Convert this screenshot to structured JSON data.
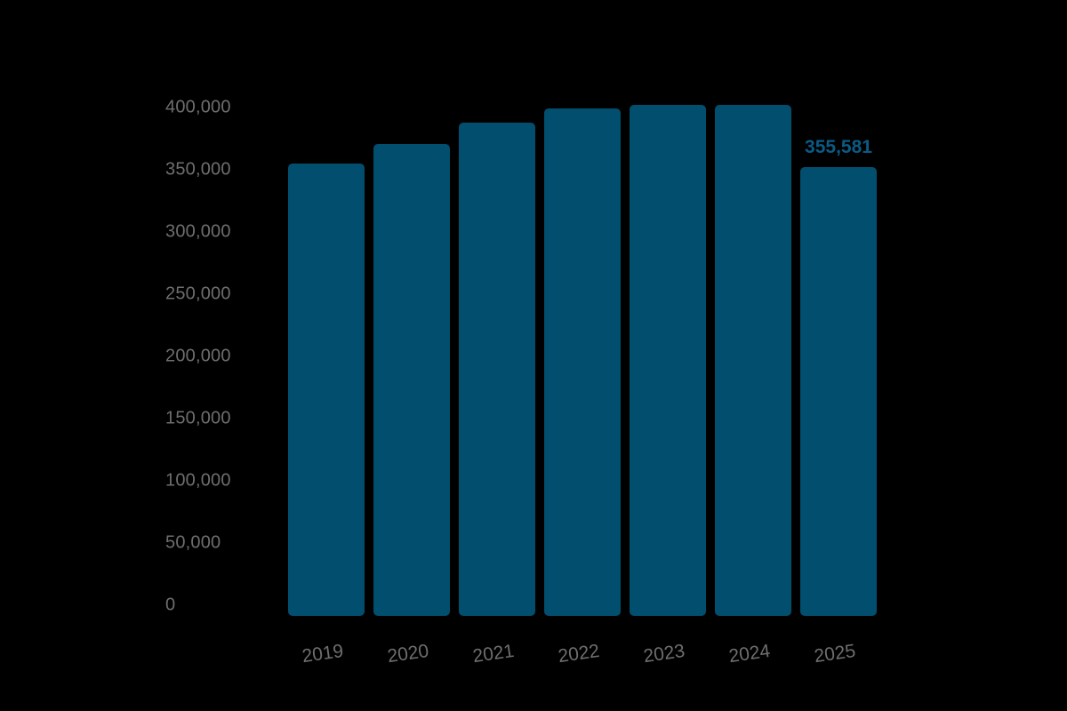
{
  "chart_data": {
    "type": "bar",
    "title": "",
    "xlabel": "",
    "ylabel": "",
    "categories": [
      "2019",
      "2020",
      "2021",
      "2022",
      "2023",
      "2024",
      "2025"
    ],
    "values": [
      358400,
      373900,
      390800,
      402000,
      404900,
      404900,
      355581
    ],
    "data_labels": [
      {
        "category": "2025",
        "text": "355,581"
      }
    ],
    "yticks": [
      0,
      50000,
      100000,
      150000,
      200000,
      250000,
      300000,
      350000,
      400000
    ],
    "ytick_labels": [
      "0",
      "50,000",
      "100,000",
      "150,000",
      "200,000",
      "250,000",
      "300,000",
      "350,000",
      "400,000"
    ],
    "ylim": [
      0,
      400000
    ],
    "grid": false,
    "legend": null,
    "colors": {
      "bar": "#024e6e",
      "highlight_label": "#0b5a84",
      "axis_text": "#6e6e6e",
      "background": "#000000"
    }
  }
}
